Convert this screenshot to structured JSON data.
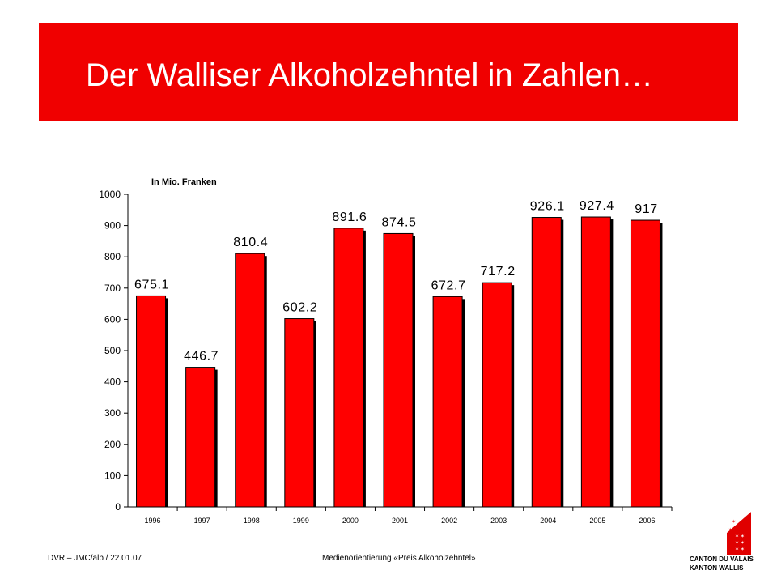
{
  "slide": {
    "title": "Der Walliser Alkoholzehntel in Zahlen…",
    "footer_left": "DVR – JMC/alp / 22.01.07",
    "footer_center": "Medienorientierung «Preis Alkoholzehntel»",
    "logo": {
      "line1": "CANTON DU VALAIS",
      "line2": "KANTON WALLIS",
      "icon": "valais-coat-of-arms-icon"
    }
  },
  "colors": {
    "banner": "#f00000",
    "bar": "#ff0000",
    "bar_shadow": "#000000"
  },
  "chart_data": {
    "type": "bar",
    "unit_label": "In Mio. Franken",
    "categories": [
      "1996",
      "1997",
      "1998",
      "1999",
      "2000",
      "2001",
      "2002",
      "2003",
      "2004",
      "2005",
      "2006"
    ],
    "values": [
      675.1,
      446.7,
      810.4,
      602.2,
      891.6,
      874.5,
      672.7,
      717.2,
      926.1,
      927.4,
      917
    ],
    "value_labels": [
      "675.1",
      "446.7",
      "810.4",
      "602.2",
      "891.6",
      "874.5",
      "672.7",
      "717.2",
      "926.1",
      "927.4",
      "917"
    ],
    "yticks": [
      "0",
      "100",
      "200",
      "300",
      "400",
      "500",
      "600",
      "700",
      "800",
      "900",
      "1000"
    ],
    "ylim": [
      0,
      1000
    ],
    "xlabel": "",
    "ylabel": "",
    "grid": false,
    "legend": false
  }
}
